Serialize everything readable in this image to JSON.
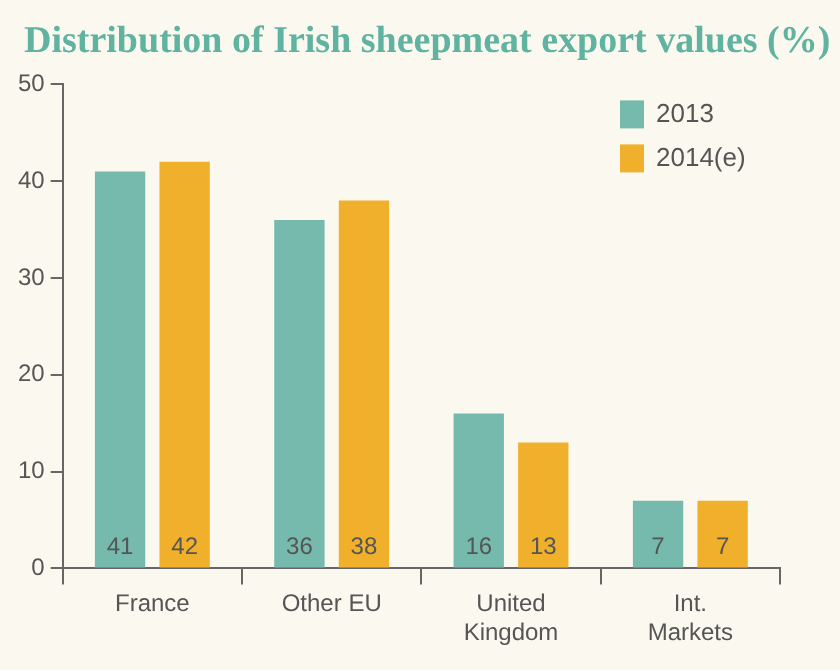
{
  "chart_data": {
    "type": "bar",
    "title": "Distribution of Irish sheepmeat export values (%)",
    "categories": [
      "France",
      "Other EU",
      "United Kingdom",
      "Int. Markets"
    ],
    "series": [
      {
        "name": "2013",
        "color": "#76b9ad",
        "values": [
          41,
          36,
          16,
          7
        ]
      },
      {
        "name": "2014(e)",
        "color": "#f0b02c",
        "values": [
          42,
          38,
          13,
          7
        ]
      }
    ],
    "ylim": [
      0,
      50
    ],
    "yticks": [
      0,
      10,
      20,
      30,
      40,
      50
    ],
    "grid": false,
    "legend": "top right",
    "data_labels": true
  }
}
